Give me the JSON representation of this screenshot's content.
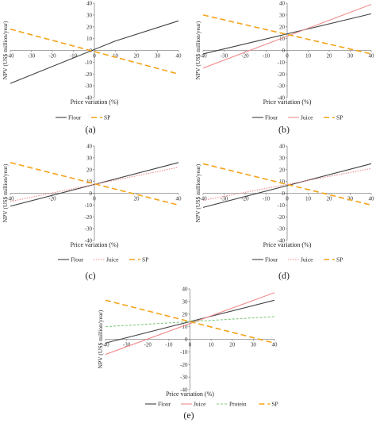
{
  "charts": [
    {
      "caption": "(a)",
      "chart_data": {
        "type": "line",
        "xlabel": "Price variation (%)",
        "ylabel": "NPV (US$ million/year)",
        "xlim": [
          -40,
          40
        ],
        "ylim": [
          -40,
          40
        ],
        "x_ticks": [
          -40,
          -30,
          -20,
          -10,
          0,
          10,
          20,
          30,
          40
        ],
        "y_ticks": [
          -40,
          -30,
          -20,
          -10,
          0,
          10,
          20,
          30,
          40
        ],
        "legend_position": "bottom",
        "series": [
          {
            "name": "Flour",
            "color": "#404040",
            "dash": "solid",
            "x": [
              -40,
              10,
              40
            ],
            "y": [
              -28,
              8,
              25
            ]
          },
          {
            "name": "SP",
            "color": "#f5a31a",
            "dash": "longdash",
            "x": [
              -40,
              40
            ],
            "y": [
              18,
              -20
            ]
          }
        ]
      }
    },
    {
      "caption": "(b)",
      "chart_data": {
        "type": "line",
        "xlabel": "Price variation (%)",
        "ylabel": "NPV (US$ million/year)",
        "xlim": [
          -40,
          40
        ],
        "ylim": [
          -40,
          40
        ],
        "x_ticks": [
          -40,
          -30,
          -20,
          -10,
          0,
          10,
          20,
          30,
          40
        ],
        "y_ticks": [
          -40,
          -30,
          -20,
          -10,
          0,
          10,
          20,
          30,
          40
        ],
        "legend_position": "bottom",
        "series": [
          {
            "name": "Flour",
            "color": "#404040",
            "dash": "solid",
            "x": [
              -40,
              40
            ],
            "y": [
              -3,
              31
            ]
          },
          {
            "name": "Juice",
            "color": "#f08c8c",
            "dash": "solid",
            "x": [
              -40,
              40
            ],
            "y": [
              -15,
              39
            ]
          },
          {
            "name": "SP",
            "color": "#f5a31a",
            "dash": "longdash",
            "x": [
              -40,
              40
            ],
            "y": [
              30,
              -3
            ]
          }
        ]
      }
    },
    {
      "caption": "(c)",
      "chart_data": {
        "type": "line",
        "xlabel": "Price variation (%)",
        "ylabel": "NPV (US$ million/year)",
        "xlim": [
          -40,
          40
        ],
        "ylim": [
          -40,
          40
        ],
        "x_ticks": [
          -40,
          -20,
          0,
          20,
          40
        ],
        "y_ticks": [
          -40,
          -30,
          -20,
          -10,
          0,
          10,
          20,
          30,
          40
        ],
        "legend_position": "bottom",
        "series": [
          {
            "name": "Flour",
            "color": "#404040",
            "dash": "solid",
            "x": [
              -40,
              40
            ],
            "y": [
              -11,
              26
            ]
          },
          {
            "name": "Juice",
            "color": "#f08c8c",
            "dash": "dotted",
            "x": [
              -40,
              40
            ],
            "y": [
              -7,
              22
            ]
          },
          {
            "name": "SP",
            "color": "#f5a31a",
            "dash": "longdash",
            "x": [
              -40,
              40
            ],
            "y": [
              26,
              -10
            ]
          }
        ]
      }
    },
    {
      "caption": "(d)",
      "chart_data": {
        "type": "line",
        "xlabel": "Price variation (%)",
        "ylabel": "NPV (US$ million/year)",
        "xlim": [
          -40,
          40
        ],
        "ylim": [
          -40,
          40
        ],
        "x_ticks": [
          -40,
          -30,
          -20,
          -10,
          0,
          10,
          20,
          30,
          40
        ],
        "y_ticks": [
          -40,
          -30,
          -20,
          -10,
          0,
          10,
          20,
          30,
          40
        ],
        "legend_position": "bottom",
        "series": [
          {
            "name": "Flour",
            "color": "#404040",
            "dash": "solid",
            "x": [
              -40,
              40
            ],
            "y": [
              -12,
              25
            ]
          },
          {
            "name": "Juice",
            "color": "#f08c8c",
            "dash": "dotted",
            "x": [
              -40,
              40
            ],
            "y": [
              -6,
              21
            ]
          },
          {
            "name": "SP",
            "color": "#f5a31a",
            "dash": "longdash",
            "x": [
              -40,
              40
            ],
            "y": [
              25,
              -10
            ]
          }
        ]
      }
    },
    {
      "caption": "(e)",
      "chart_data": {
        "type": "line",
        "xlabel": "Price variation (%)",
        "ylabel": "NPV (US$ million/year)",
        "xlim": [
          -40,
          40
        ],
        "ylim": [
          -40,
          40
        ],
        "x_ticks": [
          -40,
          -30,
          -20,
          -10,
          0,
          10,
          20,
          30,
          40
        ],
        "y_ticks": [
          -40,
          -30,
          -20,
          -10,
          0,
          10,
          20,
          30,
          40
        ],
        "legend_position": "bottom",
        "series": [
          {
            "name": "Flour",
            "color": "#404040",
            "dash": "solid",
            "x": [
              -40,
              40
            ],
            "y": [
              -3,
              31
            ]
          },
          {
            "name": "Juice",
            "color": "#f08c8c",
            "dash": "solid",
            "x": [
              -40,
              40
            ],
            "y": [
              -12,
              37
            ]
          },
          {
            "name": "Protein",
            "color": "#7fc97f",
            "dash": "shortdash",
            "x": [
              -40,
              40
            ],
            "y": [
              10,
              18
            ]
          },
          {
            "name": "SP",
            "color": "#f5a31a",
            "dash": "longdash",
            "x": [
              -40,
              40
            ],
            "y": [
              31,
              -3
            ]
          }
        ]
      }
    }
  ]
}
